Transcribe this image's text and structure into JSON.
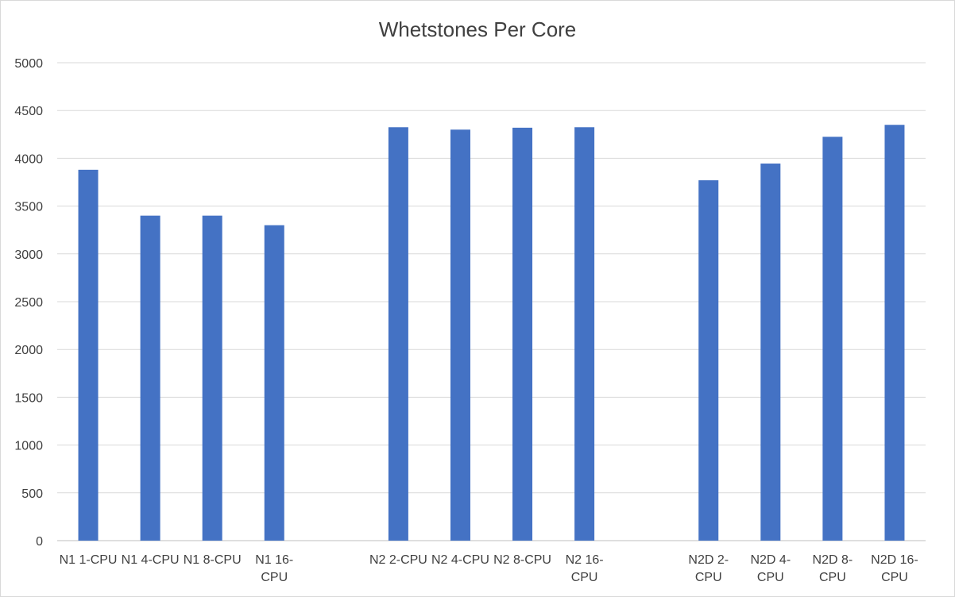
{
  "chart_data": {
    "type": "bar",
    "title": "Whetstones Per Core",
    "xlabel": "",
    "ylabel": "",
    "ylim": [
      0,
      5000
    ],
    "yticks": [
      0,
      500,
      1000,
      1500,
      2000,
      2500,
      3000,
      3500,
      4000,
      4500,
      5000
    ],
    "grid": true,
    "legend": "none",
    "bar_color": "#4472c4",
    "categories": [
      [
        "N1 1-CPU"
      ],
      [
        "N1 4-CPU"
      ],
      [
        "N1 8-CPU"
      ],
      [
        "N1 16-",
        "CPU"
      ],
      [
        ""
      ],
      [
        "N2 2-CPU"
      ],
      [
        "N2 4-CPU"
      ],
      [
        "N2 8-CPU"
      ],
      [
        "N2 16-",
        "CPU"
      ],
      [
        ""
      ],
      [
        "N2D 2-",
        "CPU"
      ],
      [
        "N2D 4-",
        "CPU"
      ],
      [
        "N2D 8-",
        "CPU"
      ],
      [
        "N2D 16-",
        "CPU"
      ]
    ],
    "values": [
      3880,
      3400,
      3400,
      3300,
      null,
      4325,
      4300,
      4320,
      4325,
      null,
      3770,
      3945,
      4225,
      4350
    ]
  }
}
